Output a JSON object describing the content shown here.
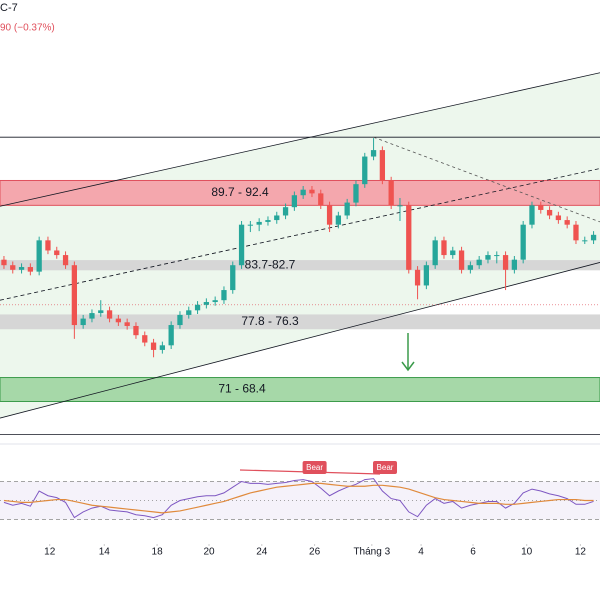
{
  "header": {
    "symbol": "C-7",
    "change": "90 (−0.37%)"
  },
  "chart_data": {
    "type": "candlestick",
    "ylim": [
      64,
      112
    ],
    "xlim": [
      -0.45,
      67.73
    ],
    "xticks": [
      {
        "value": 5.2,
        "label": "12"
      },
      {
        "value": 11.4,
        "label": "14"
      },
      {
        "value": 17.4,
        "label": "18"
      },
      {
        "value": 23.3,
        "label": "20"
      },
      {
        "value": 29.3,
        "label": "24"
      },
      {
        "value": 35.3,
        "label": "26"
      },
      {
        "value": 41.8,
        "label": "Tháng 3"
      },
      {
        "value": 47.4,
        "label": "4"
      },
      {
        "value": 53.3,
        "label": "6"
      },
      {
        "value": 59.4,
        "label": "10"
      },
      {
        "value": 65.5,
        "label": "12"
      }
    ],
    "up_color": "#26a69a",
    "down_color": "#ef5350",
    "open": [
      83.8,
      83.2,
      82.7,
      83.0,
      82.5,
      85.9,
      84.8,
      84.3,
      83.2,
      76.7,
      77.4,
      78.0,
      78.3,
      77.4,
      77.0,
      76.6,
      75.6,
      74.8,
      74.0,
      74.5,
      76.7,
      77.8,
      78.3,
      78.9,
      79.2,
      79.4,
      80.5,
      83.2,
      87.6,
      87.6,
      87.9,
      88.1,
      88.6,
      89.5,
      90.8,
      91.4,
      91.0,
      89.7,
      87.6,
      88.6,
      90.0,
      92.0,
      95.0,
      95.7,
      92.4,
      89.7,
      89.7,
      82.7,
      81.0,
      83.2,
      85.9,
      84.3,
      84.8,
      82.7,
      83.2,
      83.8,
      84.3,
      84.3,
      82.7,
      83.8,
      87.6,
      89.7,
      89.2,
      88.6,
      88.1,
      87.6,
      85.9,
      85.9
    ],
    "high": [
      84.2,
      83.6,
      83.4,
      83.4,
      86.3,
      86.3,
      85.2,
      84.7,
      83.6,
      77.8,
      78.4,
      79.4,
      78.7,
      77.8,
      77.4,
      77.0,
      76.0,
      75.2,
      74.9,
      77.1,
      78.2,
      78.7,
      79.3,
      79.6,
      79.8,
      80.9,
      83.6,
      88.0,
      88.0,
      88.3,
      88.5,
      89.0,
      89.9,
      91.2,
      91.8,
      91.8,
      91.4,
      90.1,
      89.0,
      90.4,
      92.4,
      95.4,
      97.0,
      96.1,
      92.8,
      90.5,
      90.1,
      83.1,
      83.6,
      86.3,
      86.3,
      85.2,
      85.2,
      83.6,
      84.2,
      84.7,
      84.7,
      84.7,
      84.2,
      88.0,
      90.1,
      90.1,
      89.6,
      89.0,
      88.5,
      88.0,
      86.3,
      86.9
    ],
    "low": [
      82.8,
      82.3,
      82.3,
      82.1,
      82.1,
      84.4,
      83.9,
      82.8,
      75.2,
      76.3,
      77.0,
      77.6,
      77.0,
      76.6,
      76.2,
      75.2,
      74.4,
      73.2,
      73.6,
      74.1,
      76.3,
      77.4,
      77.9,
      78.5,
      78.8,
      79.0,
      80.1,
      82.8,
      86.8,
      86.9,
      87.5,
      87.7,
      88.2,
      89.1,
      90.4,
      90.6,
      89.3,
      86.8,
      87.2,
      88.2,
      89.6,
      91.6,
      94.6,
      92.0,
      89.3,
      88.0,
      82.3,
      79.5,
      80.6,
      82.8,
      83.9,
      83.9,
      82.3,
      82.3,
      82.8,
      83.4,
      83.4,
      80.5,
      82.3,
      83.4,
      87.2,
      88.8,
      88.2,
      87.7,
      87.2,
      85.5,
      85.5,
      85.5
    ],
    "close": [
      83.2,
      82.7,
      83.0,
      82.5,
      85.9,
      84.8,
      84.3,
      83.2,
      76.7,
      77.4,
      78.0,
      78.3,
      77.4,
      77.0,
      76.6,
      75.6,
      74.8,
      74.0,
      74.5,
      76.7,
      77.8,
      78.3,
      78.9,
      79.2,
      79.4,
      80.5,
      83.2,
      87.6,
      87.6,
      87.9,
      88.1,
      88.6,
      89.5,
      90.8,
      91.4,
      91.0,
      89.7,
      87.6,
      88.6,
      90.0,
      92.0,
      95.0,
      95.7,
      92.4,
      89.7,
      89.7,
      82.7,
      81.0,
      83.2,
      85.9,
      84.3,
      84.8,
      82.7,
      83.2,
      83.8,
      84.3,
      84.3,
      82.7,
      83.8,
      87.6,
      89.7,
      89.2,
      88.6,
      88.1,
      87.6,
      85.9,
      85.9,
      86.5
    ],
    "zones": [
      {
        "label": "89.7 - 92.4",
        "low": 89.7,
        "high": 92.4,
        "color": "#f4a7ad",
        "border": "#e0505c"
      },
      {
        "label": "83.7-82.7",
        "low": 82.7,
        "high": 83.7,
        "color": "#d6d6d6",
        "border": "#d6d6d6"
      },
      {
        "label": "77.8 - 76.3",
        "low": 76.3,
        "high": 77.8,
        "color": "#d6d6d6",
        "border": "#d6d6d6"
      },
      {
        "label": "71 - 68.4",
        "low": 68.4,
        "high": 71,
        "color": "#a6d8a8",
        "border": "#3a9a4a"
      }
    ],
    "levels": [
      97.1,
      64.8
    ],
    "dotted_level": 78.9,
    "channel": {
      "upper": [
        89.6,
        104.1
      ],
      "middle": [
        79.4,
        93.7
      ],
      "lower": [
        66.6,
        83.5
      ],
      "color": "#4caf50"
    },
    "projection": {
      "x": [
        42,
        67.73
      ],
      "y": [
        97.1,
        87.9
      ]
    },
    "rsi": {
      "ylim": [
        0,
        100
      ],
      "levels": [
        70,
        50,
        30
      ],
      "color": "#7e57c2",
      "ma_color": "#e08a3c",
      "values": [
        48,
        45,
        47,
        44,
        60,
        55,
        53,
        48,
        32,
        38,
        42,
        44,
        40,
        39,
        38,
        35,
        34,
        32,
        35,
        45,
        50,
        52,
        54,
        55,
        55,
        58,
        64,
        70,
        68,
        68,
        67,
        68,
        69,
        71,
        72,
        70,
        63,
        55,
        60,
        64,
        67,
        72,
        73,
        60,
        52,
        50,
        38,
        33,
        45,
        52,
        47,
        49,
        42,
        45,
        47,
        49,
        49,
        42,
        47,
        58,
        62,
        60,
        57,
        55,
        52,
        46,
        46,
        49
      ],
      "ma": [
        50,
        49,
        48,
        48,
        49,
        50,
        51,
        51,
        49,
        47,
        45,
        44,
        43,
        42,
        41,
        40,
        39,
        38,
        37,
        38,
        39,
        41,
        43,
        45,
        47,
        49,
        52,
        55,
        58,
        60,
        62,
        64,
        65,
        66,
        67,
        68,
        68,
        67,
        66,
        65,
        65,
        65,
        66,
        66,
        65,
        64,
        62,
        59,
        56,
        53,
        51,
        50,
        49,
        48,
        47,
        47,
        47,
        46,
        46,
        47,
        48,
        49,
        50,
        51,
        51,
        51,
        50,
        50
      ],
      "signals": [
        {
          "label": "Bear",
          "index": 35.3
        },
        {
          "label": "Bear",
          "index": 43.3
        }
      ]
    }
  }
}
